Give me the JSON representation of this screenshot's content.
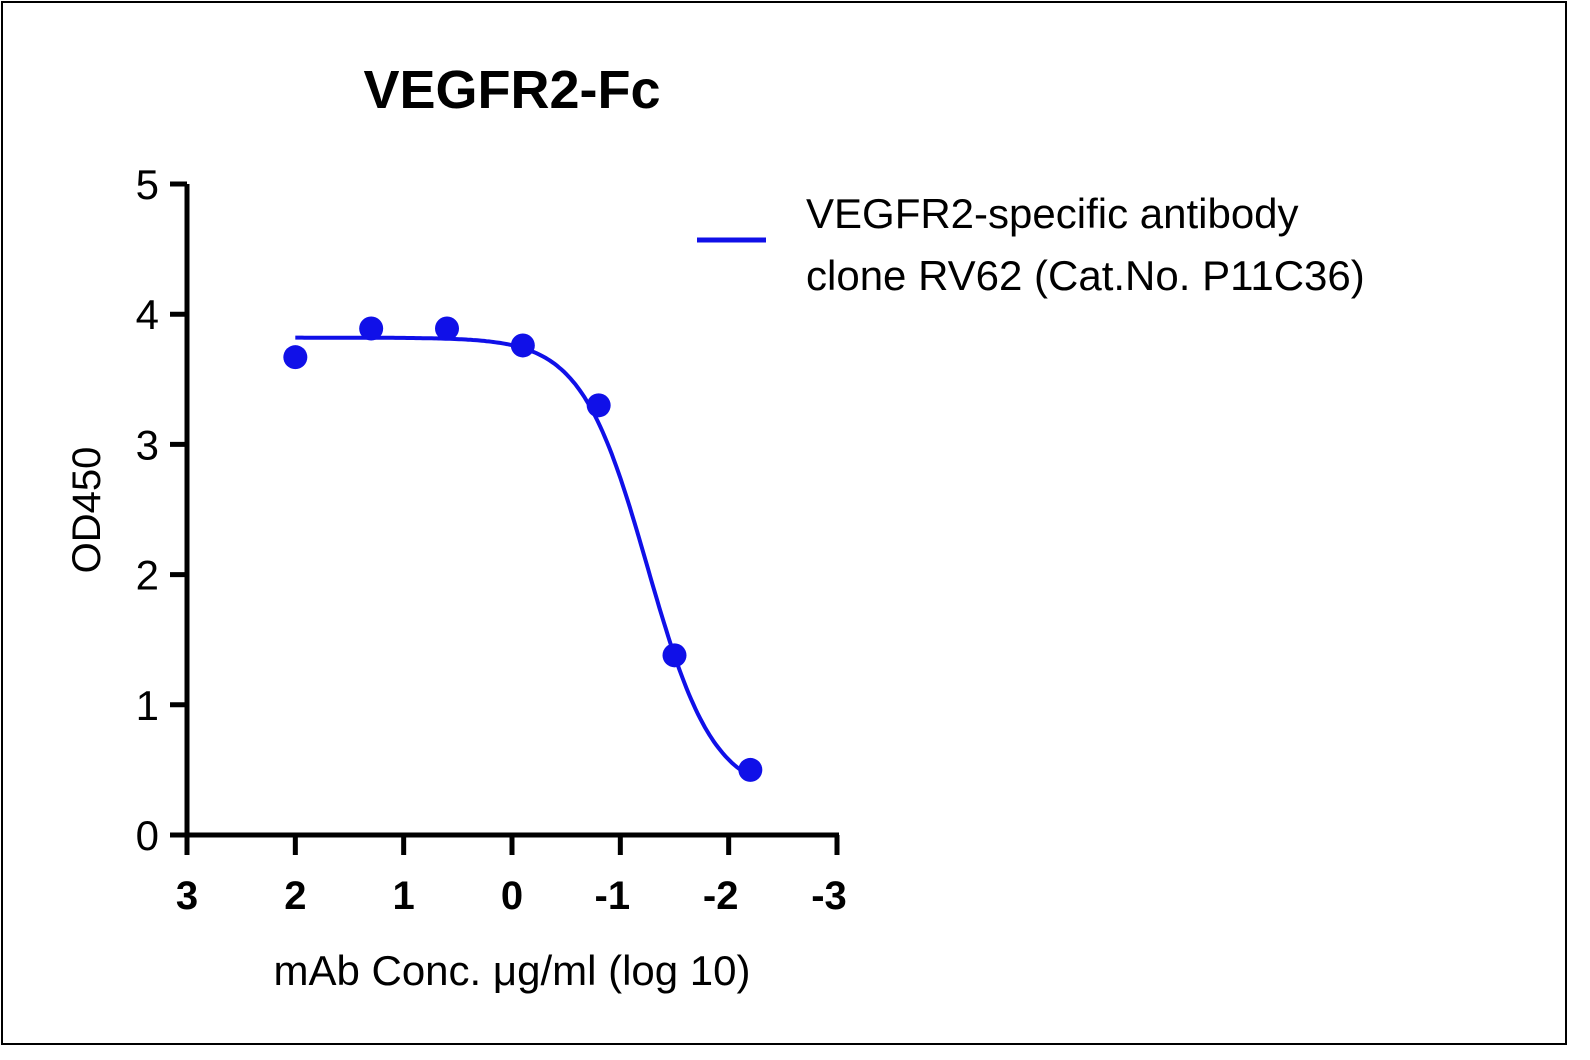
{
  "chart_data": {
    "type": "scatter",
    "title": "VEGFR2-Fc",
    "xlabel": "mAb Conc. μg/ml (log 10)",
    "ylabel": "OD450",
    "xlim": [
      3,
      -3
    ],
    "ylim": [
      0,
      5
    ],
    "xticks": [
      "3",
      "2",
      "1",
      "0",
      "-1",
      "-2",
      "-3"
    ],
    "xtick_values": [
      3,
      2,
      1,
      0,
      -1,
      -2,
      -3
    ],
    "yticks": [
      "0",
      "1",
      "2",
      "3",
      "4",
      "5"
    ],
    "ytick_values": [
      0,
      1,
      2,
      3,
      4,
      5
    ],
    "grid": false,
    "legend_position": "top-right",
    "series": [
      {
        "name": "VEGFR2-specific antibody clone RV62 (Cat.No. P11C36)",
        "legend_lines": [
          "VEGFR2-specific antibody",
          "clone RV62 (Cat.No. P11C36)"
        ],
        "color": "#1010e8",
        "x": [
          2.0,
          1.3,
          0.6,
          -0.1,
          -0.8,
          -1.5,
          -2.2
        ],
        "y": [
          3.67,
          3.89,
          3.89,
          3.76,
          3.3,
          1.38,
          0.5
        ],
        "fit": {
          "model": "4PL",
          "top": 3.82,
          "bottom": 0.3,
          "logEC50": -1.25,
          "hill": 1.42,
          "x_range": [
            2.0,
            -2.2
          ]
        }
      }
    ]
  }
}
